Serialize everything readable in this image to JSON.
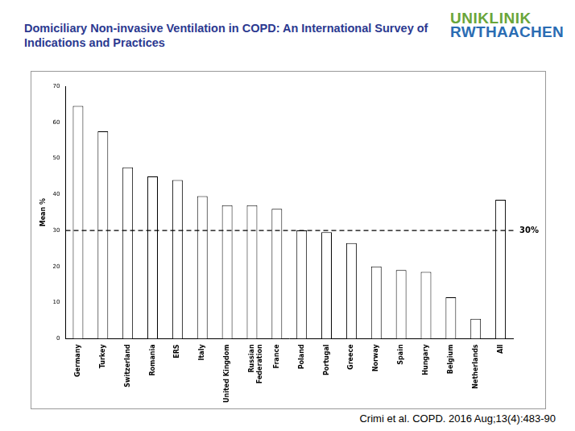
{
  "chart_data": {
    "type": "bar",
    "title": "Domiciliary Non-invasive Ventilation in COPD: An International Survey of Indications and Practices",
    "y_label": "Mean %",
    "categories": [
      "Germany",
      "Turkey",
      "Switzerland",
      "Romania",
      "ERS",
      "Italy",
      "United Kingdom",
      "Russian Federation",
      "France",
      "Poland",
      "Portugal",
      "Greece",
      "Norway",
      "Spain",
      "Hungary",
      "Belgium",
      "Netherlands",
      "All"
    ],
    "values": [
      64.5,
      57.5,
      47.5,
      45,
      44,
      39.5,
      37,
      37,
      36,
      30,
      29.5,
      26.5,
      20,
      19,
      18.5,
      11.5,
      5.5,
      38.5
    ],
    "color": "#ffffff",
    "ylim": [
      0,
      70
    ],
    "yticks": [
      0,
      10,
      20,
      30,
      40,
      50,
      60,
      70
    ],
    "grid": false,
    "annotations": [
      {
        "y": 30,
        "label": "30%",
        "line_style": "dashed"
      }
    ]
  },
  "slide": {
    "logo": [
      "UNIKLINIK",
      "RWTHAACHEN"
    ],
    "source": "Crimi et al. COPD. 2016 Aug;13(4):483-90"
  }
}
